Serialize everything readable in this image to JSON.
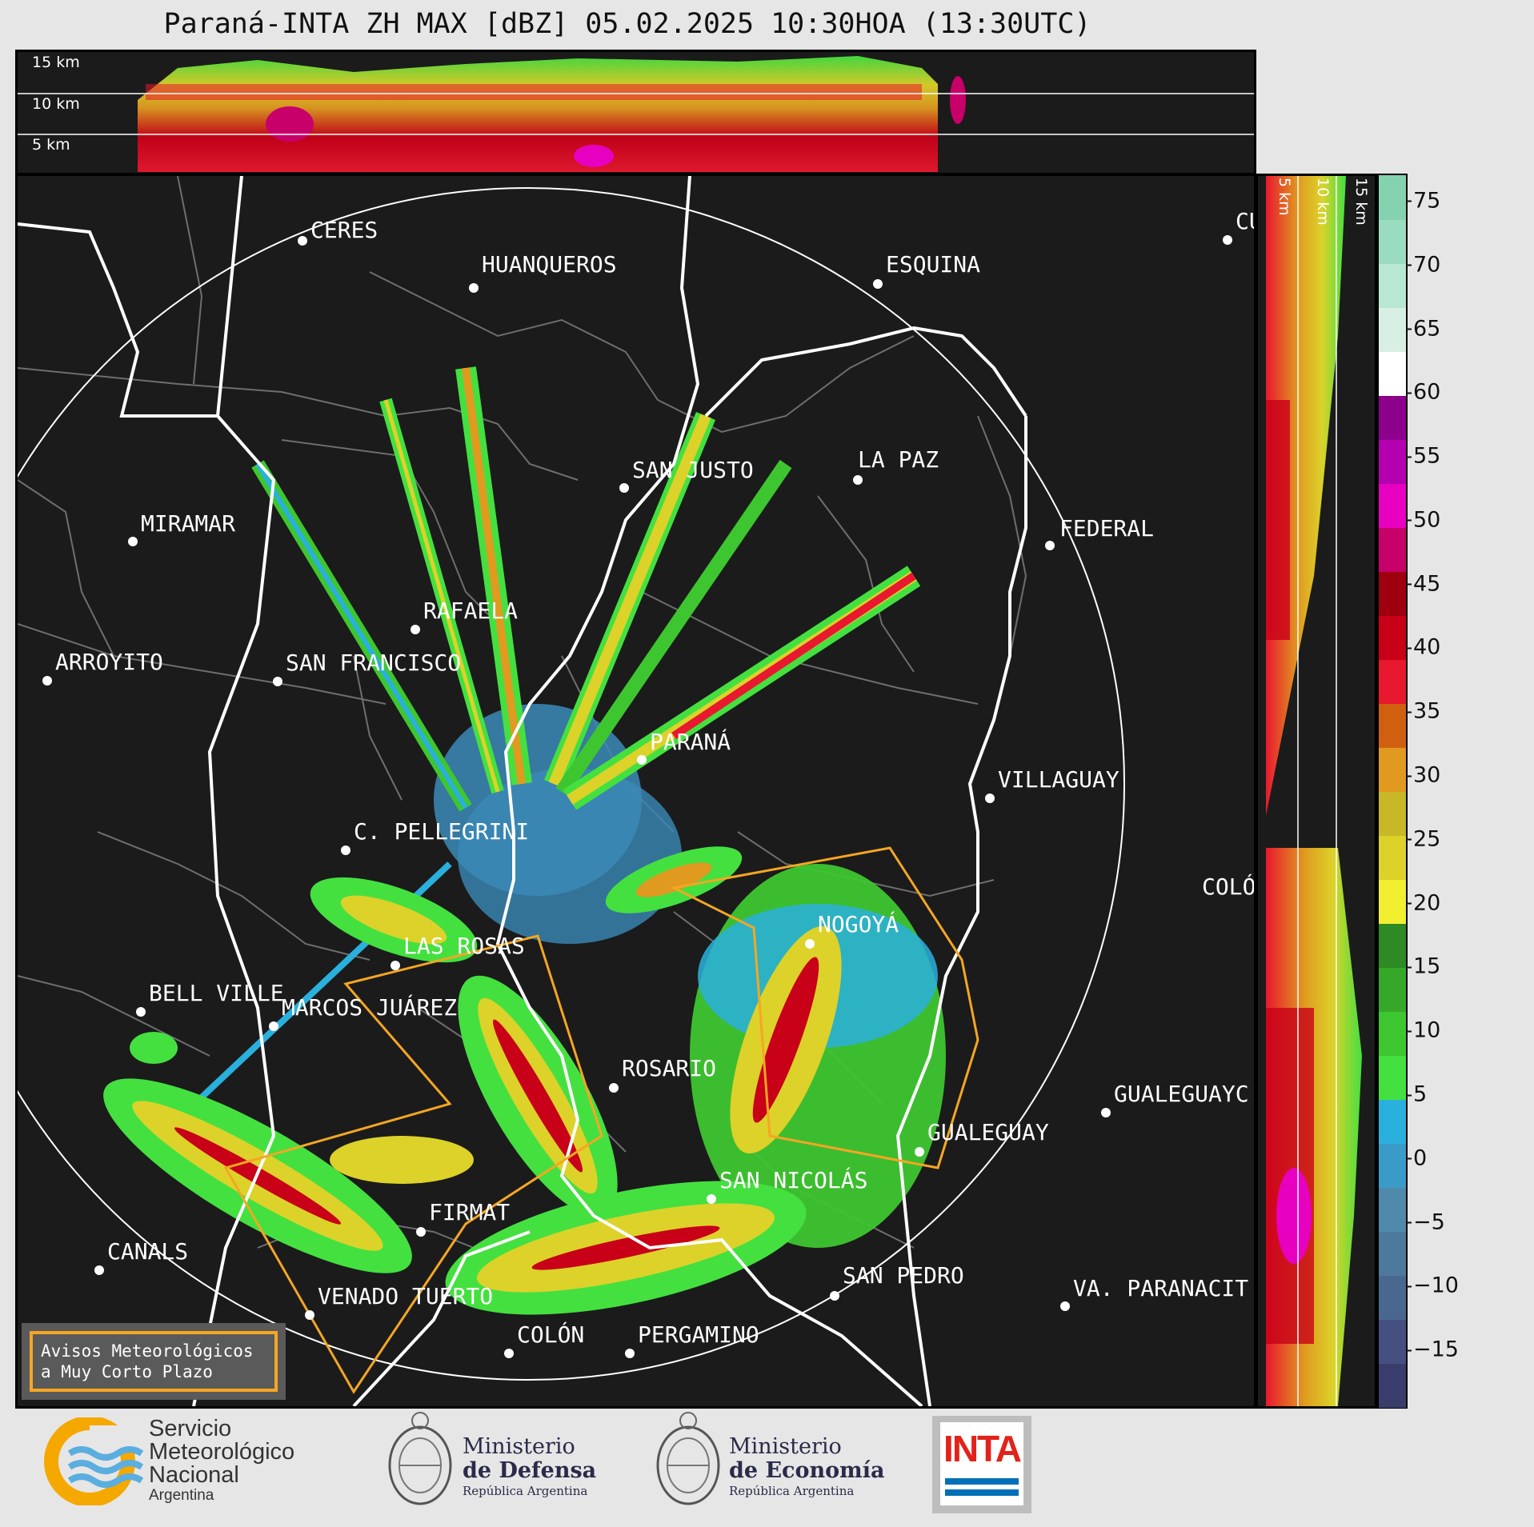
{
  "title": "Paraná-INTA ZH MAX [dBZ] 05.02.2025 10:30HOA (13:30UTC)",
  "top_panel": {
    "labels": [
      "15 km",
      "10 km",
      "5 km"
    ]
  },
  "side_panel": {
    "labels": [
      "5 km",
      "10 km",
      "15 km"
    ]
  },
  "colorbar": {
    "ticks": [
      "75",
      "70",
      "65",
      "60",
      "55",
      "50",
      "45",
      "40",
      "35",
      "30",
      "25",
      "20",
      "15",
      "10",
      "5",
      "0",
      "−5",
      "−10",
      "−15"
    ],
    "colors": [
      "#3a3d6b",
      "#455080",
      "#4a6790",
      "#4d7a9c",
      "#4f8aaa",
      "#3b9bc8",
      "#2ab0dd",
      "#44e040",
      "#3ec630",
      "#35a82a",
      "#2d8a24",
      "#f2ee30",
      "#dcd22a",
      "#c8b828",
      "#e09a20",
      "#d06010",
      "#e8182e",
      "#c80018",
      "#9e0010",
      "#c8006a",
      "#e800c0",
      "#b400b0",
      "#8c008c",
      "#ffffff",
      "#d8f0e4",
      "#b8e8d2",
      "#9adcbf",
      "#84d2b0"
    ]
  },
  "cities": [
    {
      "name": "CERES"
    },
    {
      "name": "HUANQUEROS"
    },
    {
      "name": "ESQUINA"
    },
    {
      "name": "CU"
    },
    {
      "name": "SAN JUSTO"
    },
    {
      "name": "LA PAZ"
    },
    {
      "name": "MIRAMAR"
    },
    {
      "name": "FEDERAL"
    },
    {
      "name": "RAFAELA"
    },
    {
      "name": "ARROYITO"
    },
    {
      "name": "SAN FRANCISCO"
    },
    {
      "name": "PARANÁ"
    },
    {
      "name": "VILLAGUAY"
    },
    {
      "name": "C. PELLEGRINI"
    },
    {
      "name": "COLÓ"
    },
    {
      "name": "NOGOYÁ"
    },
    {
      "name": "LAS ROSAS"
    },
    {
      "name": "BELL VILLE"
    },
    {
      "name": "MARCOS JUÁREZ"
    },
    {
      "name": "ROSARIO"
    },
    {
      "name": "GUALEGUAYC"
    },
    {
      "name": "GUALEGUAY"
    },
    {
      "name": "SAN NICOLÁS"
    },
    {
      "name": "FIRMAT"
    },
    {
      "name": "CANALS"
    },
    {
      "name": "SAN PEDRO"
    },
    {
      "name": "VENADO TUERTO"
    },
    {
      "name": "VA. PARANACIT"
    },
    {
      "name": "COLÓN"
    },
    {
      "name": "PERGAMINO"
    }
  ],
  "warning_box": {
    "line1": "Avisos Meteorológicos",
    "line2": "a Muy Corto Plazo"
  },
  "footer": {
    "smn": {
      "line1": "Servicio",
      "line2": "Meteorológico",
      "line3": "Nacional",
      "line4": "Argentina"
    },
    "defensa": {
      "line1": "Ministerio",
      "line2": "de Defensa",
      "line3": "República Argentina"
    },
    "economia": {
      "line1": "Ministerio",
      "line2": "de Economía",
      "line3": "República Argentina"
    },
    "inta": {
      "text": "INTA"
    }
  }
}
